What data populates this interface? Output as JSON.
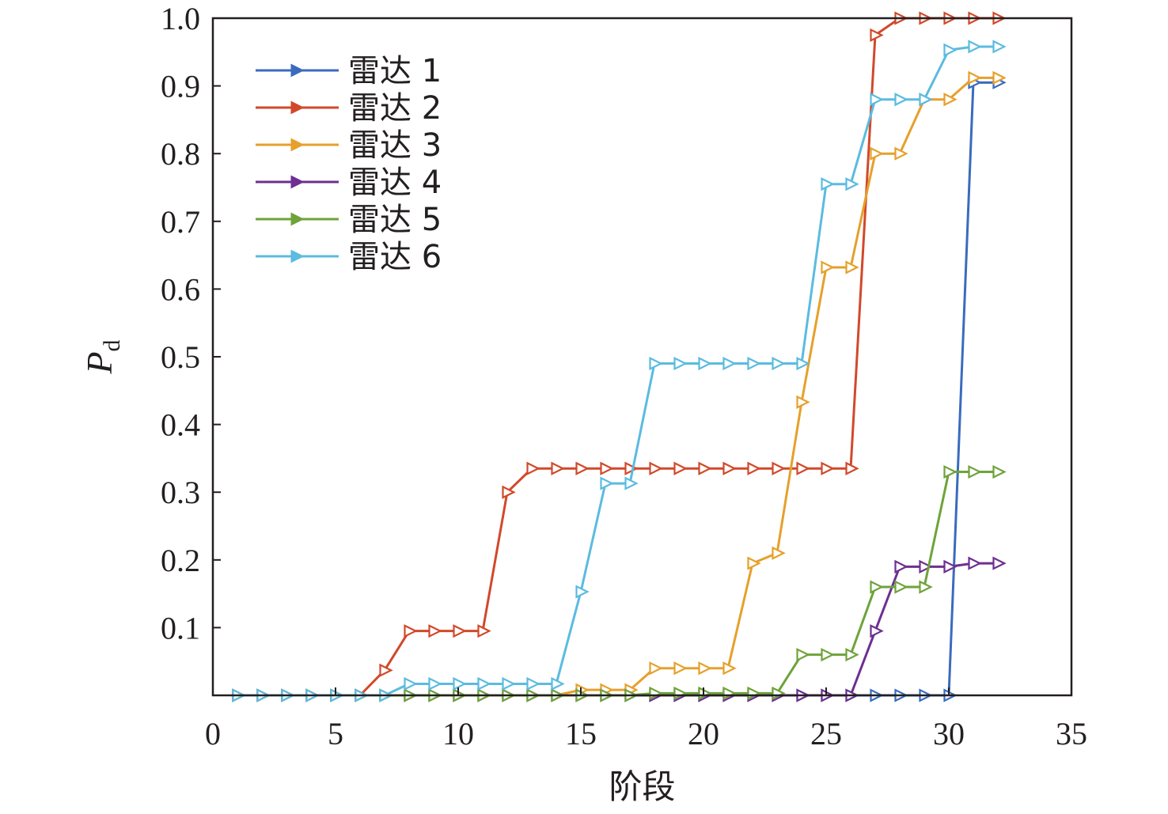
{
  "chart_data": {
    "type": "line",
    "xlabel": "阶段",
    "ylabel_main": "P",
    "ylabel_sub": "d",
    "xlim": [
      0,
      35
    ],
    "ylim": [
      0,
      1.0
    ],
    "x_ticks": [
      {
        "value": 0,
        "label": "0"
      },
      {
        "value": 5,
        "label": "5"
      },
      {
        "value": 10,
        "label": "10"
      },
      {
        "value": 15,
        "label": "15"
      },
      {
        "value": 20,
        "label": "20"
      },
      {
        "value": 25,
        "label": "25"
      },
      {
        "value": 30,
        "label": "30"
      },
      {
        "value": 35,
        "label": "35"
      }
    ],
    "y_ticks": [
      {
        "value": 0.1,
        "label": "0.1"
      },
      {
        "value": 0.2,
        "label": "0.2"
      },
      {
        "value": 0.3,
        "label": "0.3"
      },
      {
        "value": 0.4,
        "label": "0.4"
      },
      {
        "value": 0.5,
        "label": "0.5"
      },
      {
        "value": 0.6,
        "label": "0.6"
      },
      {
        "value": 0.7,
        "label": "0.7"
      },
      {
        "value": 0.8,
        "label": "0.8"
      },
      {
        "value": 0.9,
        "label": "0.9"
      },
      {
        "value": 1.0,
        "label": "1.0"
      }
    ],
    "grid": false,
    "legend_position": "top-left",
    "x": [
      1,
      2,
      3,
      4,
      5,
      6,
      7,
      8,
      9,
      10,
      11,
      12,
      13,
      14,
      15,
      16,
      17,
      18,
      19,
      20,
      21,
      22,
      23,
      24,
      25,
      26,
      27,
      28,
      29,
      30,
      31,
      32
    ],
    "series": [
      {
        "name": "雷达 1",
        "color": "#3a6bbd",
        "values": [
          0,
          0,
          0,
          0,
          0,
          0,
          0,
          0,
          0,
          0,
          0,
          0,
          0,
          0,
          0,
          0,
          0,
          0,
          0,
          0,
          0,
          0,
          0,
          0,
          0,
          0,
          0,
          0,
          0,
          0,
          0.905,
          0.905
        ]
      },
      {
        "name": "雷达 2",
        "color": "#d1492a",
        "values": [
          0,
          0,
          0,
          0,
          0,
          0,
          0.037,
          0.095,
          0.095,
          0.095,
          0.095,
          0.3,
          0.335,
          0.335,
          0.335,
          0.335,
          0.335,
          0.335,
          0.335,
          0.335,
          0.335,
          0.335,
          0.335,
          0.335,
          0.335,
          0.335,
          0.975,
          1.0,
          1.0,
          1.0,
          1.0,
          1.0
        ]
      },
      {
        "name": "雷达 3",
        "color": "#e6a02b",
        "values": [
          0,
          0,
          0,
          0,
          0,
          0,
          0,
          0,
          0,
          0,
          0,
          0,
          0,
          0,
          0.008,
          0.008,
          0.008,
          0.04,
          0.04,
          0.04,
          0.04,
          0.195,
          0.21,
          0.433,
          0.632,
          0.632,
          0.8,
          0.8,
          0.88,
          0.88,
          0.912,
          0.912
        ]
      },
      {
        "name": "雷达 4",
        "color": "#6e2f91",
        "values": [
          0,
          0,
          0,
          0,
          0,
          0,
          0,
          0,
          0,
          0,
          0,
          0,
          0,
          0,
          0,
          0,
          0,
          0,
          0,
          0,
          0,
          0,
          0,
          0,
          0,
          0,
          0.095,
          0.19,
          0.19,
          0.19,
          0.195,
          0.195
        ]
      },
      {
        "name": "雷达 5",
        "color": "#6ea33a",
        "values": [
          0,
          0,
          0,
          0,
          0,
          0,
          0,
          0,
          0,
          0,
          0,
          0,
          0,
          0,
          0,
          0,
          0,
          0.003,
          0.003,
          0.003,
          0.003,
          0.003,
          0.003,
          0.06,
          0.06,
          0.06,
          0.16,
          0.16,
          0.16,
          0.33,
          0.33,
          0.33
        ]
      },
      {
        "name": "雷达 6",
        "color": "#5bbbe0",
        "values": [
          0,
          0,
          0,
          0,
          0,
          0,
          0,
          0.017,
          0.017,
          0.017,
          0.017,
          0.017,
          0.017,
          0.017,
          0.153,
          0.313,
          0.313,
          0.49,
          0.49,
          0.49,
          0.49,
          0.49,
          0.49,
          0.49,
          0.755,
          0.755,
          0.88,
          0.88,
          0.88,
          0.953,
          0.958,
          0.958
        ]
      }
    ]
  }
}
